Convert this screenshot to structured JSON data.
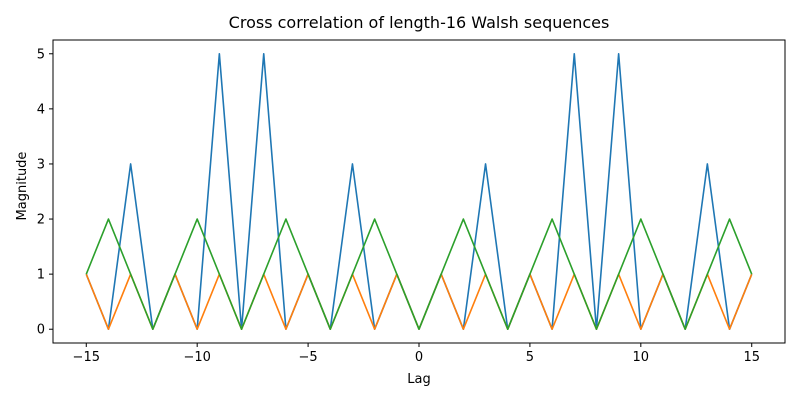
{
  "chart_data": {
    "type": "line",
    "title": "Cross correlation of length-16 Walsh sequences",
    "xlabel": "Lag",
    "ylabel": "Magnitude",
    "xlim": [
      -16.5,
      16.5
    ],
    "ylim": [
      -0.25,
      5.25
    ],
    "x_ticks": [
      -15,
      -10,
      -5,
      0,
      5,
      10,
      15
    ],
    "x_tick_labels": [
      "−15",
      "−10",
      "−5",
      "0",
      "5",
      "10",
      "15"
    ],
    "y_ticks": [
      0,
      1,
      2,
      3,
      4,
      5
    ],
    "y_tick_labels": [
      "0",
      "1",
      "2",
      "3",
      "4",
      "5"
    ],
    "grid": false,
    "legend": "none",
    "x": [
      -15,
      -14,
      -13,
      -12,
      -11,
      -10,
      -9,
      -8,
      -7,
      -6,
      -5,
      -4,
      -3,
      -2,
      -1,
      0,
      1,
      2,
      3,
      4,
      5,
      6,
      7,
      8,
      9,
      10,
      11,
      12,
      13,
      14,
      15
    ],
    "series": [
      {
        "color": "#1f77b4",
        "values": [
          1,
          0,
          3,
          0,
          1,
          0,
          5,
          0,
          5,
          0,
          1,
          0,
          3,
          0,
          1,
          0,
          1,
          0,
          3,
          0,
          1,
          0,
          5,
          0,
          5,
          0,
          1,
          0,
          3,
          0,
          1
        ]
      },
      {
        "color": "#ff7f0e",
        "values": [
          1,
          0,
          1,
          0,
          1,
          0,
          1,
          0,
          1,
          0,
          1,
          0,
          1,
          0,
          1,
          0,
          1,
          0,
          1,
          0,
          1,
          0,
          1,
          0,
          1,
          0,
          1,
          0,
          1,
          0,
          1
        ]
      },
      {
        "color": "#2ca02c",
        "values": [
          1,
          2,
          1,
          0,
          1,
          2,
          1,
          0,
          1,
          2,
          1,
          0,
          1,
          2,
          1,
          0,
          1,
          2,
          1,
          0,
          1,
          2,
          1,
          0,
          1,
          2,
          1,
          0,
          1,
          2,
          1
        ]
      }
    ]
  }
}
